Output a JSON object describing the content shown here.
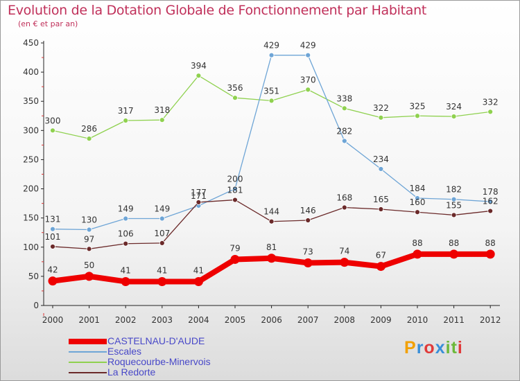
{
  "header": {
    "title": "Evolution de la Dotation Globale de Fonctionnement par Habitant",
    "subtitle": "(en € et par an)"
  },
  "logo": {
    "text": "Proxiti",
    "colors": [
      "#f2a000",
      "#3a8fd8",
      "#e03a3a",
      "#3a8fd8",
      "#6cb83a",
      "#6cb83a",
      "#e03a3a"
    ]
  },
  "chart_data": {
    "type": "line",
    "title": "Evolution de la Dotation Globale de Fonctionnement par Habitant",
    "subtitle": "(en € et par an)",
    "xlabel": "",
    "ylabel": "",
    "x": [
      "2000",
      "2001",
      "2002",
      "2003",
      "2004",
      "2005",
      "2006",
      "2007",
      "2008",
      "2009",
      "2010",
      "2011",
      "2012"
    ],
    "ylim": [
      0,
      450
    ],
    "yticks": [
      0,
      50,
      100,
      150,
      200,
      250,
      300,
      350,
      400,
      450
    ],
    "grid": false,
    "legend_position": "bottom-left",
    "series": [
      {
        "name": "Roquecourbe-Minervois",
        "color": "#8fd14f",
        "point_color": "#8fd14f",
        "values": [
          300,
          286,
          317,
          318,
          394,
          356,
          351,
          370,
          338,
          322,
          325,
          324,
          332
        ],
        "labels": [
          "300",
          "286",
          "317",
          "318",
          "394",
          "356",
          "351",
          "370",
          "338",
          "322",
          "325",
          "324",
          "332"
        ]
      },
      {
        "name": "Escales",
        "color": "#6ea5d6",
        "point_color": "#6ea5d6",
        "values": [
          131,
          130,
          149,
          149,
          171,
          200,
          429,
          429,
          282,
          234,
          184,
          182,
          178
        ],
        "labels": [
          "131",
          "130",
          "149",
          "149",
          "171",
          "200",
          "429",
          "429",
          "282",
          "234",
          "184",
          "182",
          "178"
        ]
      },
      {
        "name": "La Redorte",
        "color": "#6b2a2a",
        "point_color": "#6b2a2a",
        "values": [
          101,
          97,
          106,
          107,
          177,
          181,
          144,
          146,
          168,
          165,
          160,
          155,
          162
        ],
        "labels": [
          "101",
          "97",
          "106",
          "107",
          "177",
          "181",
          "144",
          "146",
          "168",
          "165",
          "160",
          "155",
          "162"
        ]
      },
      {
        "name": "CASTELNAU-D'AUDE",
        "color": "#ee0000",
        "point_color": "#ee0000",
        "values": [
          42,
          50,
          41,
          41,
          41,
          79,
          81,
          73,
          74,
          67,
          88,
          88,
          88
        ],
        "labels": [
          "42",
          "50",
          "41",
          "41",
          "41",
          "79",
          "81",
          "73",
          "74",
          "67",
          "88",
          "88",
          "88"
        ]
      }
    ],
    "legend": [
      {
        "name": "CASTELNAU-D'AUDE",
        "color": "#ee0000",
        "thick": true
      },
      {
        "name": "Escales",
        "color": "#6ea5d6",
        "thick": false
      },
      {
        "name": "Roquecourbe-Minervois",
        "color": "#8fd14f",
        "thick": false
      },
      {
        "name": "La Redorte",
        "color": "#6b2a2a",
        "thick": false
      }
    ]
  }
}
